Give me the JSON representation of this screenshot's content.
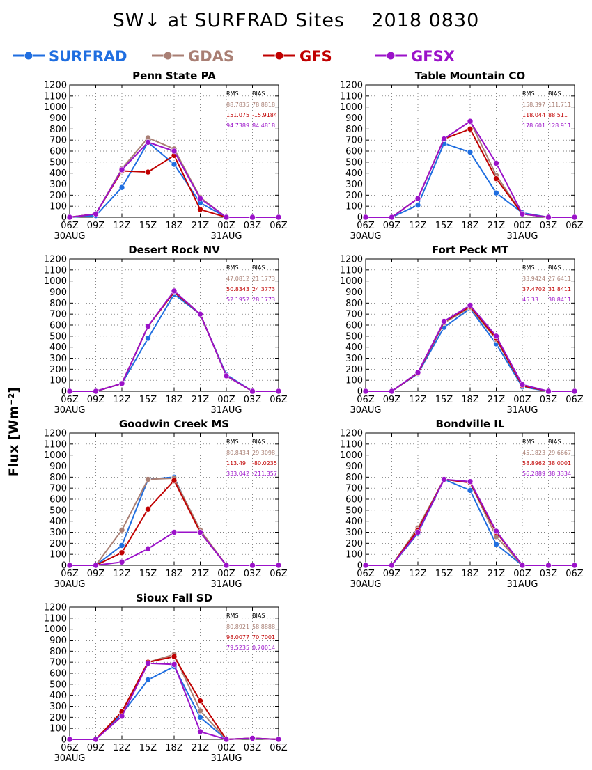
{
  "figure": {
    "title": "SW↓ at SURFRAD Sites    2018 0830",
    "ylabel": "Flux [Wm⁻²]"
  },
  "legend": [
    {
      "name": "SURFRAD",
      "color": "#1f6ee0"
    },
    {
      "name": "GDAS",
      "color": "#a97f74"
    },
    {
      "name": "GFS",
      "color": "#c00000"
    },
    {
      "name": "GFSX",
      "color": "#9b12c9"
    }
  ],
  "chart_data": [
    {
      "type": "line",
      "title": "Penn State PA",
      "x": [
        "06Z",
        "09Z",
        "12Z",
        "15Z",
        "18Z",
        "21Z",
        "00Z",
        "03Z",
        "06Z"
      ],
      "x_date_labels": {
        "0": "30AUG",
        "6": "31AUG"
      },
      "ylim": [
        0,
        1200
      ],
      "yticks": [
        0,
        100,
        200,
        300,
        400,
        500,
        600,
        700,
        800,
        900,
        1000,
        1100,
        1200
      ],
      "grid": true,
      "stats": {
        "headers": [
          "RMS",
          "BIAS"
        ],
        "rows": [
          {
            "model": "GDAS",
            "rms": "88.7835",
            "bias": "78.8818"
          },
          {
            "model": "GFS",
            "rms": "151.075",
            "bias": "-15.9184"
          },
          {
            "model": "GFSX",
            "rms": "94.7389",
            "bias": "84.4818"
          }
        ]
      },
      "series": [
        {
          "name": "SURFRAD",
          "values": [
            0,
            15,
            270,
            680,
            480,
            130,
            0,
            0,
            0
          ]
        },
        {
          "name": "GDAS",
          "values": [
            0,
            30,
            440,
            720,
            620,
            180,
            0,
            0,
            0
          ]
        },
        {
          "name": "GFS",
          "values": [
            0,
            30,
            420,
            410,
            560,
            70,
            0,
            0,
            0
          ]
        },
        {
          "name": "GFSX",
          "values": [
            0,
            30,
            430,
            680,
            600,
            170,
            0,
            0,
            0
          ]
        }
      ]
    },
    {
      "type": "line",
      "title": "Table Mountain CO",
      "x": [
        "06Z",
        "09Z",
        "12Z",
        "15Z",
        "18Z",
        "21Z",
        "00Z",
        "03Z",
        "06Z"
      ],
      "x_date_labels": {
        "0": "30AUG",
        "6": "31AUG"
      },
      "ylim": [
        0,
        1200
      ],
      "yticks": [
        0,
        100,
        200,
        300,
        400,
        500,
        600,
        700,
        800,
        900,
        1000,
        1100,
        1200
      ],
      "grid": true,
      "stats": {
        "headers": [
          "RMS",
          "BIAS"
        ],
        "rows": [
          {
            "model": "GDAS",
            "rms": "158.397",
            "bias": "111.711"
          },
          {
            "model": "GFS",
            "rms": "118.044",
            "bias": "88.511"
          },
          {
            "model": "GFSX",
            "rms": "178.601",
            "bias": "128.911"
          }
        ]
      },
      "series": [
        {
          "name": "SURFRAD",
          "values": [
            0,
            0,
            110,
            670,
            590,
            220,
            40,
            0,
            0
          ]
        },
        {
          "name": "GDAS",
          "values": [
            0,
            0,
            170,
            710,
            870,
            380,
            30,
            0,
            0
          ]
        },
        {
          "name": "GFS",
          "values": [
            0,
            0,
            170,
            710,
            800,
            350,
            30,
            0,
            0
          ]
        },
        {
          "name": "GFSX",
          "values": [
            0,
            0,
            170,
            710,
            870,
            490,
            30,
            0,
            0
          ]
        }
      ]
    },
    {
      "type": "line",
      "title": "Desert Rock NV",
      "x": [
        "06Z",
        "09Z",
        "12Z",
        "15Z",
        "18Z",
        "21Z",
        "00Z",
        "03Z",
        "06Z"
      ],
      "x_date_labels": {
        "0": "30AUG",
        "6": "31AUG"
      },
      "ylim": [
        0,
        1200
      ],
      "yticks": [
        0,
        100,
        200,
        300,
        400,
        500,
        600,
        700,
        800,
        900,
        1000,
        1100,
        1200
      ],
      "grid": true,
      "stats": {
        "headers": [
          "RMS",
          "BIAS"
        ],
        "rows": [
          {
            "model": "GDAS",
            "rms": "47.0812",
            "bias": "21.1773"
          },
          {
            "model": "GFS",
            "rms": "50.8343",
            "bias": "24.3773"
          },
          {
            "model": "GFSX",
            "rms": "52.1952",
            "bias": "28.1773"
          }
        ]
      },
      "series": [
        {
          "name": "SURFRAD",
          "values": [
            0,
            0,
            70,
            480,
            880,
            700,
            150,
            0,
            0
          ]
        },
        {
          "name": "GDAS",
          "values": [
            0,
            0,
            70,
            590,
            900,
            700,
            140,
            0,
            0
          ]
        },
        {
          "name": "GFS",
          "values": [
            0,
            0,
            70,
            590,
            900,
            700,
            140,
            0,
            0
          ]
        },
        {
          "name": "GFSX",
          "values": [
            0,
            0,
            70,
            590,
            910,
            700,
            140,
            0,
            0
          ]
        }
      ]
    },
    {
      "type": "line",
      "title": "Fort Peck MT",
      "x": [
        "06Z",
        "09Z",
        "12Z",
        "15Z",
        "18Z",
        "21Z",
        "00Z",
        "03Z",
        "06Z"
      ],
      "x_date_labels": {
        "0": "30AUG",
        "6": "31AUG"
      },
      "ylim": [
        0,
        1200
      ],
      "yticks": [
        0,
        100,
        200,
        300,
        400,
        500,
        600,
        700,
        800,
        900,
        1000,
        1100,
        1200
      ],
      "grid": true,
      "stats": {
        "headers": [
          "RMS",
          "BIAS"
        ],
        "rows": [
          {
            "model": "GDAS",
            "rms": "33.9424",
            "bias": "27.6411"
          },
          {
            "model": "GFS",
            "rms": "37.4702",
            "bias": "31.8411"
          },
          {
            "model": "GFSX",
            "rms": "45.33",
            "bias": "38.8411"
          }
        ]
      },
      "series": [
        {
          "name": "SURFRAD",
          "values": [
            0,
            0,
            160,
            580,
            750,
            430,
            40,
            0,
            0
          ]
        },
        {
          "name": "GDAS",
          "values": [
            0,
            0,
            165,
            620,
            760,
            470,
            50,
            0,
            0
          ]
        },
        {
          "name": "GFS",
          "values": [
            0,
            0,
            165,
            630,
            770,
            480,
            50,
            0,
            0
          ]
        },
        {
          "name": "GFSX",
          "values": [
            0,
            0,
            170,
            635,
            780,
            500,
            60,
            0,
            0
          ]
        }
      ]
    },
    {
      "type": "line",
      "title": "Goodwin Creek MS",
      "x": [
        "06Z",
        "09Z",
        "12Z",
        "15Z",
        "18Z",
        "21Z",
        "00Z",
        "03Z",
        "06Z"
      ],
      "x_date_labels": {
        "0": "30AUG",
        "6": "31AUG"
      },
      "ylim": [
        0,
        1200
      ],
      "yticks": [
        0,
        100,
        200,
        300,
        400,
        500,
        600,
        700,
        800,
        900,
        1000,
        1100,
        1200
      ],
      "grid": true,
      "stats": {
        "headers": [
          "RMS",
          "BIAS"
        ],
        "rows": [
          {
            "model": "GDAS",
            "rms": "80.8434",
            "bias": "29.3098"
          },
          {
            "model": "GFS",
            "rms": "113.49",
            "bias": "-80.0235"
          },
          {
            "model": "GFSX",
            "rms": "333.042",
            "bias": "-211.357"
          }
        ]
      },
      "series": [
        {
          "name": "SURFRAD",
          "values": [
            0,
            0,
            180,
            780,
            800,
            300,
            0,
            0,
            0
          ]
        },
        {
          "name": "GDAS",
          "values": [
            0,
            0,
            320,
            780,
            790,
            320,
            0,
            0,
            0
          ]
        },
        {
          "name": "GFS",
          "values": [
            0,
            0,
            115,
            510,
            770,
            300,
            0,
            0,
            0
          ]
        },
        {
          "name": "GFSX",
          "values": [
            0,
            0,
            30,
            150,
            300,
            300,
            0,
            0,
            0
          ]
        }
      ]
    },
    {
      "type": "line",
      "title": "Bondville IL",
      "x": [
        "06Z",
        "09Z",
        "12Z",
        "15Z",
        "18Z",
        "21Z",
        "00Z",
        "03Z",
        "06Z"
      ],
      "x_date_labels": {
        "0": "30AUG",
        "6": "31AUG"
      },
      "ylim": [
        0,
        1200
      ],
      "yticks": [
        0,
        100,
        200,
        300,
        400,
        500,
        600,
        700,
        800,
        900,
        1000,
        1100,
        1200
      ],
      "grid": true,
      "stats": {
        "headers": [
          "RMS",
          "BIAS"
        ],
        "rows": [
          {
            "model": "GDAS",
            "rms": "45.1823",
            "bias": "29.6667"
          },
          {
            "model": "GFS",
            "rms": "58.8962",
            "bias": "38.0001"
          },
          {
            "model": "GFSX",
            "rms": "56.2889",
            "bias": "38.3334"
          }
        ]
      },
      "series": [
        {
          "name": "SURFRAD",
          "values": [
            0,
            0,
            290,
            780,
            680,
            190,
            0,
            0,
            0
          ]
        },
        {
          "name": "GDAS",
          "values": [
            0,
            0,
            340,
            780,
            750,
            260,
            0,
            0,
            0
          ]
        },
        {
          "name": "GFS",
          "values": [
            0,
            0,
            320,
            780,
            750,
            300,
            0,
            0,
            0
          ]
        },
        {
          "name": "GFSX",
          "values": [
            0,
            0,
            300,
            780,
            760,
            310,
            0,
            0,
            0
          ]
        }
      ]
    },
    {
      "type": "line",
      "title": "Sioux Fall SD",
      "x": [
        "06Z",
        "09Z",
        "12Z",
        "15Z",
        "18Z",
        "21Z",
        "00Z",
        "03Z",
        "06Z"
      ],
      "x_date_labels": {
        "0": "30AUG",
        "6": "31AUG"
      },
      "ylim": [
        0,
        1200
      ],
      "yticks": [
        0,
        100,
        200,
        300,
        400,
        500,
        600,
        700,
        800,
        900,
        1000,
        1100,
        1200
      ],
      "grid": true,
      "stats": {
        "headers": [
          "RMS",
          "BIAS"
        ],
        "rows": [
          {
            "model": "GDAS",
            "rms": "80.8921",
            "bias": "58.8888"
          },
          {
            "model": "GFS",
            "rms": "98.0077",
            "bias": "70.7001"
          },
          {
            "model": "GFSX",
            "rms": "79.5235",
            "bias": "0.70014"
          }
        ]
      },
      "series": [
        {
          "name": "SURFRAD",
          "values": [
            0,
            0,
            230,
            540,
            660,
            200,
            0,
            10,
            0
          ]
        },
        {
          "name": "GDAS",
          "values": [
            0,
            0,
            250,
            700,
            770,
            260,
            0,
            10,
            0
          ]
        },
        {
          "name": "GFS",
          "values": [
            0,
            0,
            250,
            700,
            750,
            350,
            0,
            10,
            0
          ]
        },
        {
          "name": "GFSX",
          "values": [
            0,
            0,
            210,
            690,
            680,
            70,
            0,
            10,
            0
          ]
        }
      ]
    }
  ]
}
